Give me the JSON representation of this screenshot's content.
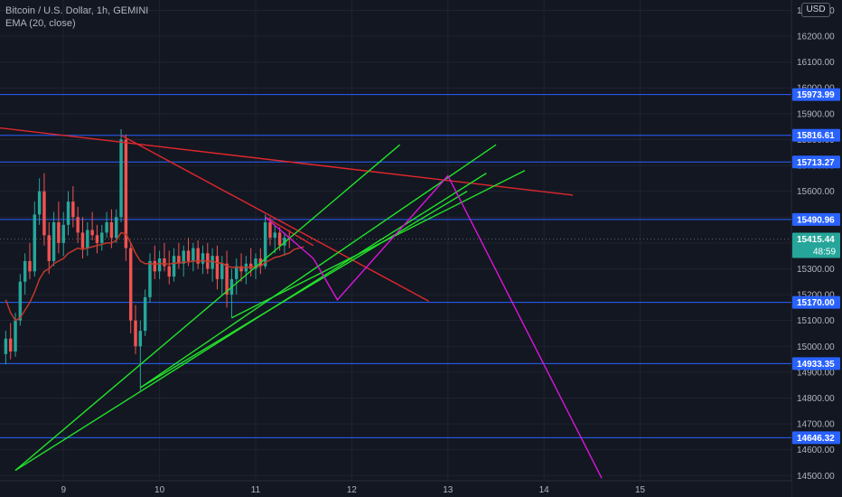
{
  "legend": {
    "symbol": "Bitcoin / U.S. Dollar, 1h, GEMINI",
    "indicator": "EMA (20, close)"
  },
  "currency_label": "USD",
  "colors": {
    "background": "#131722",
    "grid": "#1f2330",
    "up": "#26a69a",
    "down": "#ef5350",
    "ema": "#c0392b",
    "level": "#2962ff",
    "green": "#22e22a",
    "red": "#e0272c",
    "magenta": "#d916d9",
    "label_bg": "#2962ff",
    "last_price_bg": "#26a69a"
  },
  "chart_data": {
    "type": "candlestick",
    "y_ticks": [
      16300,
      16200,
      16100,
      16000,
      15900,
      15800,
      15700,
      15600,
      15500,
      15400,
      15300,
      15200,
      15100,
      15000,
      14900,
      14800,
      14700,
      14600,
      14500
    ],
    "y_tick_labels": [
      "16300.00",
      "16200.00",
      "16100.00",
      "16000.00",
      "15900.00",
      "15800.00",
      "15700.00",
      "15600.00",
      "15500.00",
      "15400.00",
      "15300.00",
      "15200.00",
      "15100.00",
      "15000.00",
      "14900.00",
      "14800.00",
      "14700.00",
      "14600.00",
      "14500.00"
    ],
    "x_ticks": [
      9,
      10,
      11,
      12,
      13,
      14,
      15
    ],
    "x_tick_labels": [
      "9",
      "10",
      "11",
      "12",
      "13",
      "14",
      "15"
    ],
    "ylim": [
      14480,
      16340
    ],
    "xlim": [
      8.34,
      17.1
    ],
    "levels": [
      {
        "price": 15973.99,
        "label": "15973.99"
      },
      {
        "price": 15816.61,
        "label": "15816.61"
      },
      {
        "price": 15713.27,
        "label": "15713.27"
      },
      {
        "price": 15490.96,
        "label": "15490.96"
      },
      {
        "price": 15170.0,
        "label": "15170.00"
      },
      {
        "price": 14933.35,
        "label": "14933.35"
      },
      {
        "price": 14646.32,
        "label": "14646.32"
      }
    ],
    "last_price": {
      "price": 15415.44,
      "label": "15415.44",
      "countdown": "48:59"
    },
    "candles": [
      {
        "t": 8.4,
        "o": 14970,
        "h": 15060,
        "l": 14930,
        "c": 15030
      },
      {
        "t": 8.45,
        "o": 15030,
        "h": 15090,
        "l": 14950,
        "c": 14980
      },
      {
        "t": 8.5,
        "o": 14980,
        "h": 15130,
        "l": 14960,
        "c": 15100
      },
      {
        "t": 8.55,
        "o": 15100,
        "h": 15280,
        "l": 15080,
        "c": 15250
      },
      {
        "t": 8.6,
        "o": 15250,
        "h": 15360,
        "l": 15200,
        "c": 15330
      },
      {
        "t": 8.65,
        "o": 15330,
        "h": 15400,
        "l": 15260,
        "c": 15290
      },
      {
        "t": 8.7,
        "o": 15290,
        "h": 15560,
        "l": 15270,
        "c": 15510
      },
      {
        "t": 8.75,
        "o": 15510,
        "h": 15650,
        "l": 15470,
        "c": 15600
      },
      {
        "t": 8.8,
        "o": 15600,
        "h": 15670,
        "l": 15390,
        "c": 15430
      },
      {
        "t": 8.85,
        "o": 15430,
        "h": 15480,
        "l": 15280,
        "c": 15330
      },
      {
        "t": 8.9,
        "o": 15330,
        "h": 15520,
        "l": 15310,
        "c": 15480
      },
      {
        "t": 8.95,
        "o": 15480,
        "h": 15560,
        "l": 15360,
        "c": 15400
      },
      {
        "t": 9.0,
        "o": 15400,
        "h": 15520,
        "l": 15350,
        "c": 15470
      },
      {
        "t": 9.05,
        "o": 15470,
        "h": 15600,
        "l": 15430,
        "c": 15560
      },
      {
        "t": 9.1,
        "o": 15560,
        "h": 15620,
        "l": 15460,
        "c": 15500
      },
      {
        "t": 9.15,
        "o": 15500,
        "h": 15540,
        "l": 15400,
        "c": 15440
      },
      {
        "t": 9.2,
        "o": 15440,
        "h": 15500,
        "l": 15340,
        "c": 15380
      },
      {
        "t": 9.25,
        "o": 15380,
        "h": 15480,
        "l": 15350,
        "c": 15450
      },
      {
        "t": 9.3,
        "o": 15450,
        "h": 15520,
        "l": 15410,
        "c": 15430
      },
      {
        "t": 9.35,
        "o": 15430,
        "h": 15470,
        "l": 15360,
        "c": 15400
      },
      {
        "t": 9.4,
        "o": 15400,
        "h": 15470,
        "l": 15370,
        "c": 15440
      },
      {
        "t": 9.45,
        "o": 15440,
        "h": 15520,
        "l": 15420,
        "c": 15480
      },
      {
        "t": 9.5,
        "o": 15480,
        "h": 15530,
        "l": 15380,
        "c": 15420
      },
      {
        "t": 9.55,
        "o": 15420,
        "h": 15530,
        "l": 15400,
        "c": 15500
      },
      {
        "t": 9.6,
        "o": 15500,
        "h": 15840,
        "l": 15480,
        "c": 15800
      },
      {
        "t": 9.65,
        "o": 15800,
        "h": 15820,
        "l": 15330,
        "c": 15380
      },
      {
        "t": 9.7,
        "o": 15380,
        "h": 15400,
        "l": 15050,
        "c": 15100
      },
      {
        "t": 9.75,
        "o": 15100,
        "h": 15160,
        "l": 14970,
        "c": 15000
      },
      {
        "t": 9.8,
        "o": 15000,
        "h": 15100,
        "l": 14830,
        "c": 15060
      },
      {
        "t": 9.85,
        "o": 15060,
        "h": 15220,
        "l": 15040,
        "c": 15190
      },
      {
        "t": 9.9,
        "o": 15190,
        "h": 15360,
        "l": 15170,
        "c": 15330
      },
      {
        "t": 9.95,
        "o": 15330,
        "h": 15390,
        "l": 15260,
        "c": 15290
      },
      {
        "t": 10.0,
        "o": 15290,
        "h": 15370,
        "l": 15260,
        "c": 15340
      },
      {
        "t": 10.05,
        "o": 15340,
        "h": 15400,
        "l": 15290,
        "c": 15310
      },
      {
        "t": 10.1,
        "o": 15310,
        "h": 15370,
        "l": 15240,
        "c": 15270
      },
      {
        "t": 10.15,
        "o": 15270,
        "h": 15380,
        "l": 15250,
        "c": 15350
      },
      {
        "t": 10.2,
        "o": 15350,
        "h": 15400,
        "l": 15300,
        "c": 15320
      },
      {
        "t": 10.25,
        "o": 15320,
        "h": 15390,
        "l": 15270,
        "c": 15370
      },
      {
        "t": 10.3,
        "o": 15370,
        "h": 15420,
        "l": 15310,
        "c": 15330
      },
      {
        "t": 10.35,
        "o": 15330,
        "h": 15400,
        "l": 15290,
        "c": 15380
      },
      {
        "t": 10.4,
        "o": 15380,
        "h": 15410,
        "l": 15300,
        "c": 15320
      },
      {
        "t": 10.45,
        "o": 15320,
        "h": 15390,
        "l": 15280,
        "c": 15360
      },
      {
        "t": 10.5,
        "o": 15360,
        "h": 15400,
        "l": 15280,
        "c": 15300
      },
      {
        "t": 10.55,
        "o": 15300,
        "h": 15380,
        "l": 15250,
        "c": 15350
      },
      {
        "t": 10.6,
        "o": 15350,
        "h": 15390,
        "l": 15220,
        "c": 15260
      },
      {
        "t": 10.65,
        "o": 15260,
        "h": 15350,
        "l": 15200,
        "c": 15320
      },
      {
        "t": 10.7,
        "o": 15320,
        "h": 15370,
        "l": 15150,
        "c": 15200
      },
      {
        "t": 10.75,
        "o": 15200,
        "h": 15300,
        "l": 15110,
        "c": 15260
      },
      {
        "t": 10.8,
        "o": 15260,
        "h": 15340,
        "l": 15200,
        "c": 15310
      },
      {
        "t": 10.85,
        "o": 15310,
        "h": 15360,
        "l": 15250,
        "c": 15290
      },
      {
        "t": 10.9,
        "o": 15290,
        "h": 15350,
        "l": 15240,
        "c": 15320
      },
      {
        "t": 10.95,
        "o": 15320,
        "h": 15380,
        "l": 15270,
        "c": 15300
      },
      {
        "t": 11.0,
        "o": 15300,
        "h": 15360,
        "l": 15260,
        "c": 15340
      },
      {
        "t": 11.05,
        "o": 15340,
        "h": 15380,
        "l": 15280,
        "c": 15310
      },
      {
        "t": 11.1,
        "o": 15310,
        "h": 15510,
        "l": 15300,
        "c": 15480
      },
      {
        "t": 11.15,
        "o": 15480,
        "h": 15500,
        "l": 15390,
        "c": 15420
      },
      {
        "t": 11.2,
        "o": 15420,
        "h": 15470,
        "l": 15360,
        "c": 15440
      },
      {
        "t": 11.25,
        "o": 15440,
        "h": 15460,
        "l": 15370,
        "c": 15390
      },
      {
        "t": 11.3,
        "o": 15390,
        "h": 15440,
        "l": 15350,
        "c": 15420
      },
      {
        "t": 11.35,
        "o": 15420,
        "h": 15450,
        "l": 15380,
        "c": 15415.44
      }
    ],
    "ema": [
      [
        8.4,
        15180
      ],
      [
        8.45,
        15130
      ],
      [
        8.5,
        15100
      ],
      [
        8.55,
        15110
      ],
      [
        8.6,
        15140
      ],
      [
        8.65,
        15170
      ],
      [
        8.7,
        15210
      ],
      [
        8.75,
        15260
      ],
      [
        8.8,
        15290
      ],
      [
        8.85,
        15300
      ],
      [
        8.9,
        15320
      ],
      [
        8.95,
        15330
      ],
      [
        9.0,
        15340
      ],
      [
        9.05,
        15360
      ],
      [
        9.1,
        15370
      ],
      [
        9.15,
        15380
      ],
      [
        9.2,
        15375
      ],
      [
        9.25,
        15380
      ],
      [
        9.3,
        15385
      ],
      [
        9.35,
        15390
      ],
      [
        9.4,
        15395
      ],
      [
        9.45,
        15400
      ],
      [
        9.5,
        15400
      ],
      [
        9.55,
        15410
      ],
      [
        9.6,
        15440
      ],
      [
        9.65,
        15435
      ],
      [
        9.7,
        15400
      ],
      [
        9.75,
        15360
      ],
      [
        9.8,
        15330
      ],
      [
        9.85,
        15320
      ],
      [
        9.9,
        15320
      ],
      [
        9.95,
        15318
      ],
      [
        10.0,
        15320
      ],
      [
        10.05,
        15320
      ],
      [
        10.1,
        15318
      ],
      [
        10.15,
        15322
      ],
      [
        10.2,
        15322
      ],
      [
        10.25,
        15326
      ],
      [
        10.3,
        15326
      ],
      [
        10.35,
        15330
      ],
      [
        10.4,
        15329
      ],
      [
        10.45,
        15332
      ],
      [
        10.5,
        15328
      ],
      [
        10.55,
        15330
      ],
      [
        10.6,
        15322
      ],
      [
        10.65,
        15322
      ],
      [
        10.7,
        15311
      ],
      [
        10.75,
        15306
      ],
      [
        10.8,
        15306
      ],
      [
        10.85,
        15305
      ],
      [
        10.9,
        15306
      ],
      [
        10.95,
        15306
      ],
      [
        11.0,
        15309
      ],
      [
        11.05,
        15309
      ],
      [
        11.1,
        15325
      ],
      [
        11.15,
        15334
      ],
      [
        11.2,
        15344
      ],
      [
        11.25,
        15348
      ],
      [
        11.3,
        15355
      ],
      [
        11.35,
        15361
      ],
      [
        11.4,
        15375
      ],
      [
        11.5,
        15385
      ]
    ],
    "drawings": [
      {
        "kind": "trendline",
        "color": "red",
        "points": [
          [
            8.34,
            15845
          ],
          [
            14.3,
            15585
          ]
        ]
      },
      {
        "kind": "trendline",
        "color": "red",
        "points": [
          [
            9.6,
            15816.61
          ],
          [
            12.8,
            15175
          ]
        ]
      },
      {
        "kind": "trendline",
        "color": "red",
        "points": [
          [
            11.1,
            15500
          ],
          [
            11.6,
            15390
          ]
        ]
      },
      {
        "kind": "trendline",
        "color": "green",
        "points": [
          [
            8.5,
            14520
          ],
          [
            12.5,
            15780
          ]
        ]
      },
      {
        "kind": "trendline",
        "color": "green",
        "points": [
          [
            9.8,
            14840
          ],
          [
            13.5,
            15780
          ]
        ]
      },
      {
        "kind": "trendline",
        "color": "green",
        "points": [
          [
            10.75,
            15110
          ],
          [
            13.8,
            15680
          ]
        ]
      },
      {
        "kind": "trendline",
        "color": "green",
        "points": [
          [
            8.5,
            14520
          ],
          [
            13.4,
            15670
          ]
        ]
      },
      {
        "kind": "trendline",
        "color": "green",
        "points": [
          [
            9.8,
            14840
          ],
          [
            13.2,
            15600
          ]
        ]
      },
      {
        "kind": "path",
        "color": "magenta",
        "points": [
          [
            11.1,
            15500
          ],
          [
            11.6,
            15340
          ],
          [
            11.85,
            15180
          ],
          [
            13.0,
            15660
          ],
          [
            14.6,
            14490
          ]
        ]
      }
    ]
  }
}
